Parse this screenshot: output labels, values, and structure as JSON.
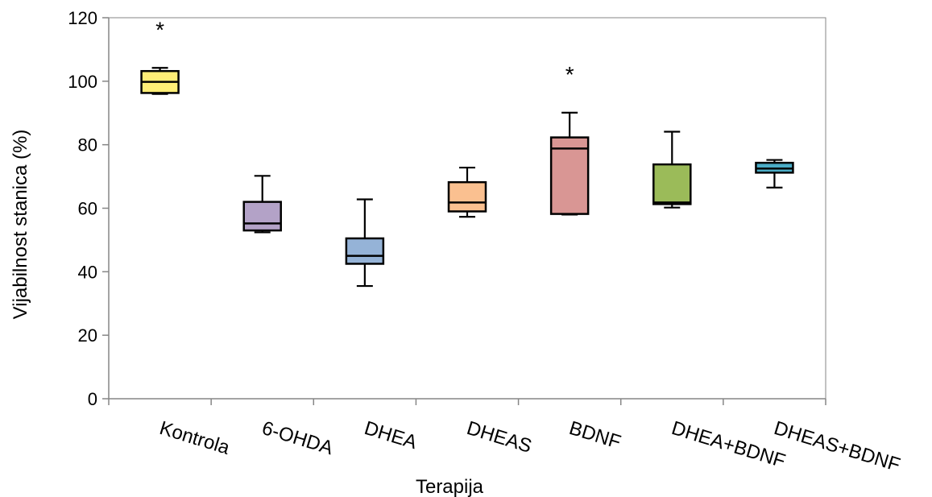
{
  "chart_data": {
    "type": "box",
    "xlabel": "Terapija",
    "ylabel": "Vijabilnost stanica (%)",
    "ylim": [
      0,
      120
    ],
    "yticks": [
      0,
      20,
      40,
      60,
      80,
      100,
      120
    ],
    "grid": false,
    "categories": [
      "Kontrola",
      "6-OHDA",
      "DHEA",
      "DHEAS",
      "BDNF",
      "DHEA+BDNF",
      "DHEAS+BDNF"
    ],
    "boxes": [
      {
        "category": "Kontrola",
        "min": 96,
        "q1": 96.3,
        "median": 99.8,
        "q3": 103.2,
        "max": 104.2,
        "color": "#FFEE77",
        "annotation": "*"
      },
      {
        "category": "6-OHDA",
        "min": 52.4,
        "q1": 53,
        "median": 55.2,
        "q3": 62,
        "max": 70.2,
        "color": "#B3A2C7",
        "annotation": ""
      },
      {
        "category": "DHEA",
        "min": 35.5,
        "q1": 42.5,
        "median": 45,
        "q3": 50.5,
        "max": 62.8,
        "color": "#95B3D7",
        "annotation": ""
      },
      {
        "category": "DHEAS",
        "min": 57.3,
        "q1": 59,
        "median": 61.8,
        "q3": 68.2,
        "max": 72.8,
        "color": "#FAC090",
        "annotation": ""
      },
      {
        "category": "BDNF",
        "min": 58,
        "q1": 58.2,
        "median": 78.8,
        "q3": 82.3,
        "max": 90.1,
        "color": "#D99694",
        "annotation": "*"
      },
      {
        "category": "DHEA+BDNF",
        "min": 60.2,
        "q1": 61.3,
        "median": 61.8,
        "q3": 73.8,
        "max": 84.1,
        "color": "#9BBB59",
        "annotation": ""
      },
      {
        "category": "DHEAS+BDNF",
        "min": 66.5,
        "q1": 71.2,
        "median": 72.5,
        "q3": 74.3,
        "max": 75.2,
        "color": "#4BACC6",
        "annotation": ""
      }
    ]
  }
}
